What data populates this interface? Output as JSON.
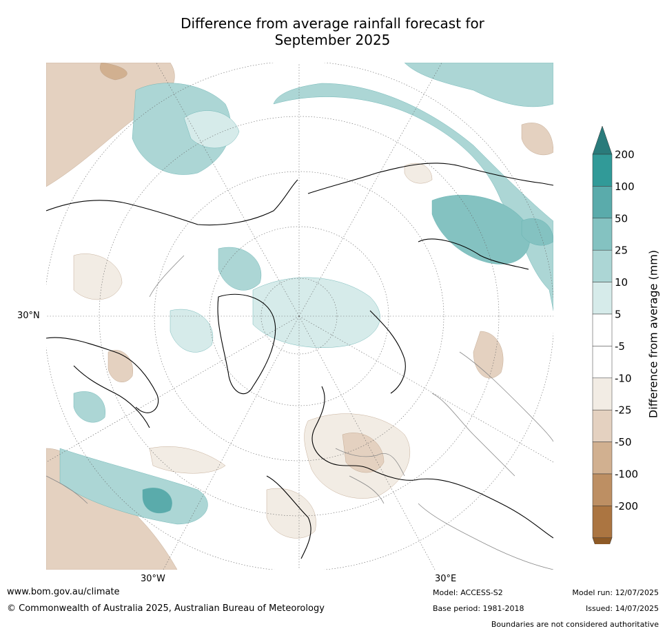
{
  "title_line1": "Difference from average rainfall forecast for",
  "title_line2": "September 2025",
  "axis_labels": {
    "lat": "30°N",
    "lon_west": "30°W",
    "lon_east": "30°E"
  },
  "colorbar": {
    "title": "Difference from average (mm)",
    "ticks": [
      "200",
      "100",
      "50",
      "25",
      "10",
      "5",
      "-5",
      "-10",
      "-25",
      "-50",
      "-100",
      "-200"
    ],
    "colors": {
      "gt200": "#2a7b7b",
      "100_200": "#319a98",
      "50_100": "#5aabab",
      "25_50": "#84c2c1",
      "10_25": "#acd6d5",
      "5_10": "#d6ebea",
      "neutral": "#ffffff",
      "m10_m5": "#f2ece4",
      "m25_m10": "#e4d1c0",
      "m50_m25": "#d1b090",
      "m100_m50": "#bd8f63",
      "m200_m100": "#ab7541",
      "lt_m200": "#8e5a26"
    }
  },
  "footer": {
    "website": "www.bom.gov.au/climate",
    "copyright": "© Commonwealth of Australia 2025, Australian Bureau of Meteorology",
    "model": "Model: ACCESS-S2",
    "base_period": "Base period: 1981-2018",
    "model_run": "Model run: 12/07/2025",
    "issued": "Issued: 14/07/2025",
    "disclaimer": "Boundaries are not considered authoritative"
  }
}
